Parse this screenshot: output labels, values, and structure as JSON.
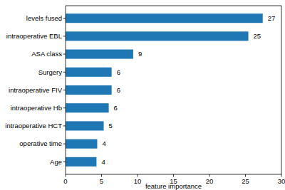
{
  "chart_data": {
    "type": "bar",
    "orientation": "horizontal",
    "x_label": "feature importance",
    "categories": [
      "levels fused",
      "intraoperative EBL",
      "ASA class",
      "Surgery",
      "intraoperative FIV",
      "intraoperative Hb",
      "intraoperative HCT",
      "operative time",
      "Age"
    ],
    "values": [
      27.4,
      25.4,
      9.4,
      6.4,
      6.4,
      6.0,
      5.3,
      4.4,
      4.3
    ],
    "value_labels": [
      "27",
      "25",
      "9",
      "6",
      "6",
      "6",
      "5",
      "4",
      "4"
    ],
    "data_labels": true,
    "color": "#1f77b4",
    "xlim": [
      0,
      30
    ],
    "xticks": [
      0,
      5,
      10,
      15,
      20,
      25,
      30
    ],
    "grid": false
  }
}
